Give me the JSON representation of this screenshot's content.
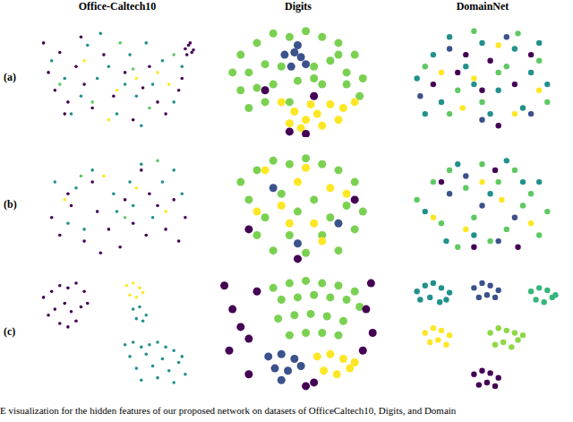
{
  "column_titles": [
    "Office-Caltech10",
    "Digits",
    "DomainNet"
  ],
  "row_labels": [
    "(a)",
    "(b)",
    "(c)"
  ],
  "caption": "E visualization for the hidden features of our proposed network on datasets of OfficeCaltech10, Digits, and Domain",
  "chart_data": [
    {
      "type": "scatter",
      "xlim": [
        0,
        100
      ],
      "ylim": [
        0,
        100
      ],
      "tick_labels": false,
      "series": [
        {
          "color": "#440154",
          "x": [
            5,
            8,
            12,
            15,
            20,
            25,
            30,
            35,
            42,
            48,
            55,
            60,
            66,
            70,
            75,
            80,
            88,
            92,
            94,
            96,
            95,
            93,
            97,
            90,
            18,
            28
          ],
          "y": [
            80,
            55,
            40,
            72,
            30,
            60,
            45,
            25,
            70,
            35,
            55,
            15,
            42,
            60,
            30,
            20,
            40,
            75,
            78,
            72,
            80,
            70,
            74,
            50,
            20,
            85
          ]
        },
        {
          "color": "#21918c",
          "x": [
            10,
            18,
            22,
            32,
            38,
            45,
            50,
            58,
            62,
            68,
            72,
            78,
            85,
            90,
            40,
            28,
            55,
            65
          ],
          "y": [
            65,
            50,
            20,
            78,
            50,
            60,
            20,
            70,
            35,
            80,
            45,
            65,
            30,
            60,
            88,
            35,
            45,
            10
          ]
        },
        {
          "color": "#fde725",
          "x": [
            30,
            50,
            62,
            75,
            82,
            45
          ],
          "y": [
            65,
            40,
            50,
            55,
            45,
            15
          ]
        },
        {
          "color": "#5ec962",
          "x": [
            15,
            35,
            52,
            70,
            85,
            60
          ],
          "y": [
            45,
            30,
            80,
            25,
            70,
            58
          ]
        }
      ]
    },
    {
      "type": "scatter",
      "xlim": [
        0,
        100
      ],
      "ylim": [
        0,
        100
      ],
      "tick_labels": false,
      "series": [
        {
          "color": "#7ad151",
          "x": [
            15,
            25,
            35,
            45,
            55,
            65,
            75,
            85,
            20,
            30,
            40,
            60,
            70,
            80,
            90,
            15,
            25,
            35,
            50,
            65,
            80,
            88,
            30,
            45,
            60,
            75,
            20,
            10
          ],
          "y": [
            70,
            80,
            88,
            85,
            90,
            85,
            80,
            70,
            55,
            62,
            60,
            60,
            65,
            55,
            50,
            40,
            42,
            45,
            48,
            45,
            45,
            35,
            30,
            30,
            50,
            70,
            25,
            55
          ]
        },
        {
          "color": "#3b528b",
          "x": [
            42,
            48,
            52,
            55,
            46,
            50
          ],
          "y": [
            70,
            72,
            68,
            62,
            60,
            78
          ]
        },
        {
          "color": "#fde725",
          "x": [
            40,
            48,
            55,
            62,
            70,
            78,
            85,
            52,
            65,
            75,
            45,
            58
          ],
          "y": [
            30,
            22,
            15,
            20,
            28,
            25,
            30,
            8,
            10,
            15,
            12,
            28
          ]
        },
        {
          "color": "#440154",
          "x": [
            45,
            55,
            30,
            60
          ],
          "y": [
            5,
            3,
            40,
            35
          ]
        }
      ]
    },
    {
      "type": "scatter",
      "xlim": [
        0,
        100
      ],
      "ylim": [
        0,
        100
      ],
      "tick_labels": false,
      "series": [
        {
          "color": "#21918c",
          "x": [
            10,
            20,
            30,
            40,
            50,
            60,
            70,
            80,
            90,
            25,
            55,
            75,
            85,
            15,
            45
          ],
          "y": [
            50,
            70,
            85,
            60,
            80,
            40,
            75,
            55,
            45,
            30,
            20,
            25,
            80,
            20,
            45
          ]
        },
        {
          "color": "#5ec962",
          "x": [
            15,
            35,
            45,
            65,
            85,
            30,
            60,
            72,
            90,
            50
          ],
          "y": [
            60,
            40,
            90,
            60,
            65,
            20,
            55,
            88,
            30,
            30
          ]
        },
        {
          "color": "#440154",
          "x": [
            20,
            40,
            55,
            70,
            80,
            60,
            35,
            50
          ],
          "y": [
            45,
            70,
            65,
            45,
            70,
            10,
            55,
            40
          ]
        },
        {
          "color": "#fde725",
          "x": [
            25,
            45,
            60,
            70,
            85,
            38
          ],
          "y": [
            55,
            50,
            78,
            20,
            40,
            25
          ]
        },
        {
          "color": "#3b528b",
          "x": [
            30,
            65,
            80,
            50,
            12
          ],
          "y": [
            75,
            85,
            20,
            15,
            35
          ]
        }
      ]
    },
    {
      "type": "scatter",
      "xlim": [
        0,
        100
      ],
      "ylim": [
        0,
        100
      ],
      "tick_labels": false,
      "series": [
        {
          "color": "#440154",
          "x": [
            10,
            15,
            22,
            30,
            38,
            45,
            52,
            60,
            68,
            75,
            80,
            88,
            92,
            20,
            35,
            55,
            70,
            85,
            40,
            65
          ],
          "y": [
            40,
            25,
            50,
            20,
            45,
            30,
            15,
            35,
            25,
            50,
            30,
            20,
            40,
            60,
            70,
            55,
            60,
            55,
            10,
            80
          ]
        },
        {
          "color": "#21918c",
          "x": [
            12,
            25,
            35,
            48,
            58,
            65,
            78,
            85,
            30,
            50,
            72,
            90,
            20,
            60
          ],
          "y": [
            70,
            65,
            80,
            60,
            70,
            85,
            70,
            80,
            30,
            45,
            40,
            60,
            35,
            50
          ]
        },
        {
          "color": "#fde725",
          "x": [
            18,
            42,
            62,
            80
          ],
          "y": [
            55,
            75,
            65,
            45
          ]
        },
        {
          "color": "#5ec962",
          "x": [
            28,
            55,
            75
          ],
          "y": [
            75,
            40,
            88
          ]
        }
      ]
    },
    {
      "type": "scatter",
      "xlim": [
        0,
        100
      ],
      "ylim": [
        0,
        100
      ],
      "tick_labels": false,
      "series": [
        {
          "color": "#7ad151",
          "x": [
            15,
            25,
            35,
            45,
            55,
            65,
            75,
            85,
            20,
            40,
            60,
            80,
            30,
            50,
            70,
            90,
            25,
            45,
            65,
            85,
            35,
            55,
            75
          ],
          "y": [
            70,
            80,
            88,
            85,
            90,
            85,
            80,
            70,
            55,
            60,
            55,
            50,
            40,
            45,
            40,
            45,
            25,
            25,
            25,
            30,
            12,
            10,
            12
          ]
        },
        {
          "color": "#fde725",
          "x": [
            30,
            50,
            70,
            40,
            60,
            80,
            25,
            45,
            65,
            55
          ],
          "y": [
            80,
            70,
            65,
            50,
            35,
            60,
            45,
            35,
            20,
            82
          ]
        },
        {
          "color": "#3b528b",
          "x": [
            35,
            75,
            50
          ],
          "y": [
            65,
            35,
            18
          ]
        },
        {
          "color": "#440154",
          "x": [
            20,
            85,
            50
          ],
          "y": [
            30,
            55,
            5
          ]
        }
      ]
    },
    {
      "type": "scatter",
      "xlim": [
        0,
        100
      ],
      "ylim": [
        0,
        100
      ],
      "tick_labels": false,
      "series": [
        {
          "color": "#5ec962",
          "x": [
            10,
            20,
            30,
            40,
            50,
            60,
            70,
            80,
            90,
            25,
            45,
            65,
            85,
            35,
            55,
            75
          ],
          "y": [
            55,
            70,
            80,
            65,
            85,
            70,
            80,
            60,
            45,
            35,
            40,
            30,
            25,
            15,
            20,
            50
          ]
        },
        {
          "color": "#21918c",
          "x": [
            15,
            35,
            55,
            75,
            45,
            65,
            85,
            28
          ],
          "y": [
            45,
            85,
            60,
            70,
            25,
            88,
            70,
            20
          ]
        },
        {
          "color": "#3b528b",
          "x": [
            30,
            50,
            70,
            60,
            40
          ],
          "y": [
            60,
            50,
            40,
            20,
            75
          ]
        },
        {
          "color": "#fde725",
          "x": [
            20,
            40,
            62,
            80,
            50
          ],
          "y": [
            40,
            30,
            55,
            35,
            70
          ]
        },
        {
          "color": "#440154",
          "x": [
            25,
            45,
            72,
            58
          ],
          "y": [
            70,
            15,
            15,
            80
          ]
        }
      ]
    },
    {
      "type": "scatter",
      "xlim": [
        0,
        100
      ],
      "ylim": [
        0,
        100
      ],
      "tick_labels": false,
      "series": [
        {
          "color": "#440154",
          "x": [
            5,
            10,
            15,
            20,
            25,
            30,
            12,
            18,
            22,
            28,
            8,
            15,
            25,
            32,
            20
          ],
          "y": [
            80,
            85,
            90,
            88,
            92,
            85,
            70,
            75,
            68,
            72,
            65,
            58,
            60,
            75,
            55
          ]
        },
        {
          "color": "#fde725",
          "x": [
            56,
            60,
            64,
            58,
            62,
            66
          ],
          "y": [
            90,
            92,
            88,
            82,
            80,
            84
          ]
        },
        {
          "color": "#21918c",
          "x": [
            60,
            64,
            68,
            62,
            66,
            55,
            60,
            65,
            70,
            75,
            80,
            85,
            90,
            58,
            68,
            78,
            88,
            62,
            72,
            82,
            92,
            65,
            75,
            85
          ],
          "y": [
            70,
            72,
            65,
            62,
            60,
            40,
            42,
            38,
            40,
            42,
            38,
            35,
            30,
            30,
            32,
            28,
            25,
            20,
            22,
            18,
            15,
            10,
            12,
            8
          ]
        }
      ]
    },
    {
      "type": "scatter",
      "xlim": [
        0,
        100
      ],
      "ylim": [
        0,
        100
      ],
      "tick_labels": false,
      "series": [
        {
          "color": "#7ad151",
          "x": [
            35,
            45,
            55,
            65,
            75,
            85,
            40,
            50,
            60,
            70,
            80,
            88,
            38,
            48,
            58,
            68,
            78,
            45,
            55,
            65,
            75
          ],
          "y": [
            88,
            92,
            94,
            92,
            90,
            85,
            78,
            80,
            82,
            80,
            78,
            72,
            62,
            65,
            66,
            64,
            60,
            48,
            50,
            50,
            48
          ]
        },
        {
          "color": "#3b528b",
          "x": [
            32,
            40,
            48,
            36,
            44,
            52,
            40
          ],
          "y": [
            30,
            32,
            28,
            20,
            18,
            22,
            10
          ]
        },
        {
          "color": "#fde725",
          "x": [
            62,
            70,
            78,
            85,
            66,
            74,
            82
          ],
          "y": [
            30,
            32,
            28,
            25,
            18,
            15,
            20
          ]
        },
        {
          "color": "#440154",
          "x": [
            5,
            10,
            15,
            8,
            20,
            95,
            92,
            96,
            55,
            60,
            25,
            90,
            20
          ],
          "y": [
            90,
            70,
            55,
            35,
            15,
            92,
            70,
            50,
            5,
            8,
            85,
            35,
            45
          ]
        }
      ]
    },
    {
      "type": "scatter",
      "xlim": [
        0,
        100
      ],
      "ylim": [
        0,
        100
      ],
      "tick_labels": false,
      "series": [
        {
          "color": "#21918c",
          "x": [
            10,
            15,
            20,
            25,
            30,
            12,
            18,
            24,
            28
          ],
          "y": [
            85,
            90,
            92,
            88,
            84,
            78,
            80,
            76,
            78
          ]
        },
        {
          "color": "#3b528b",
          "x": [
            45,
            50,
            55,
            60,
            48,
            53,
            58
          ],
          "y": [
            88,
            92,
            90,
            86,
            80,
            82,
            80
          ]
        },
        {
          "color": "#35b779",
          "x": [
            80,
            85,
            90,
            95,
            83,
            88,
            93
          ],
          "y": [
            85,
            88,
            86,
            82,
            78,
            76,
            80
          ]
        },
        {
          "color": "#fde725",
          "x": [
            15,
            20,
            25,
            30,
            18,
            23,
            28
          ],
          "y": [
            50,
            54,
            52,
            48,
            42,
            44,
            40
          ]
        },
        {
          "color": "#8fd744",
          "x": [
            55,
            60,
            65,
            70,
            75,
            58,
            63,
            68,
            72
          ],
          "y": [
            50,
            54,
            52,
            50,
            48,
            40,
            42,
            38,
            44
          ]
        },
        {
          "color": "#440154",
          "x": [
            45,
            50,
            55,
            60,
            48,
            53,
            58
          ],
          "y": [
            15,
            18,
            16,
            12,
            6,
            8,
            5
          ]
        }
      ]
    }
  ]
}
